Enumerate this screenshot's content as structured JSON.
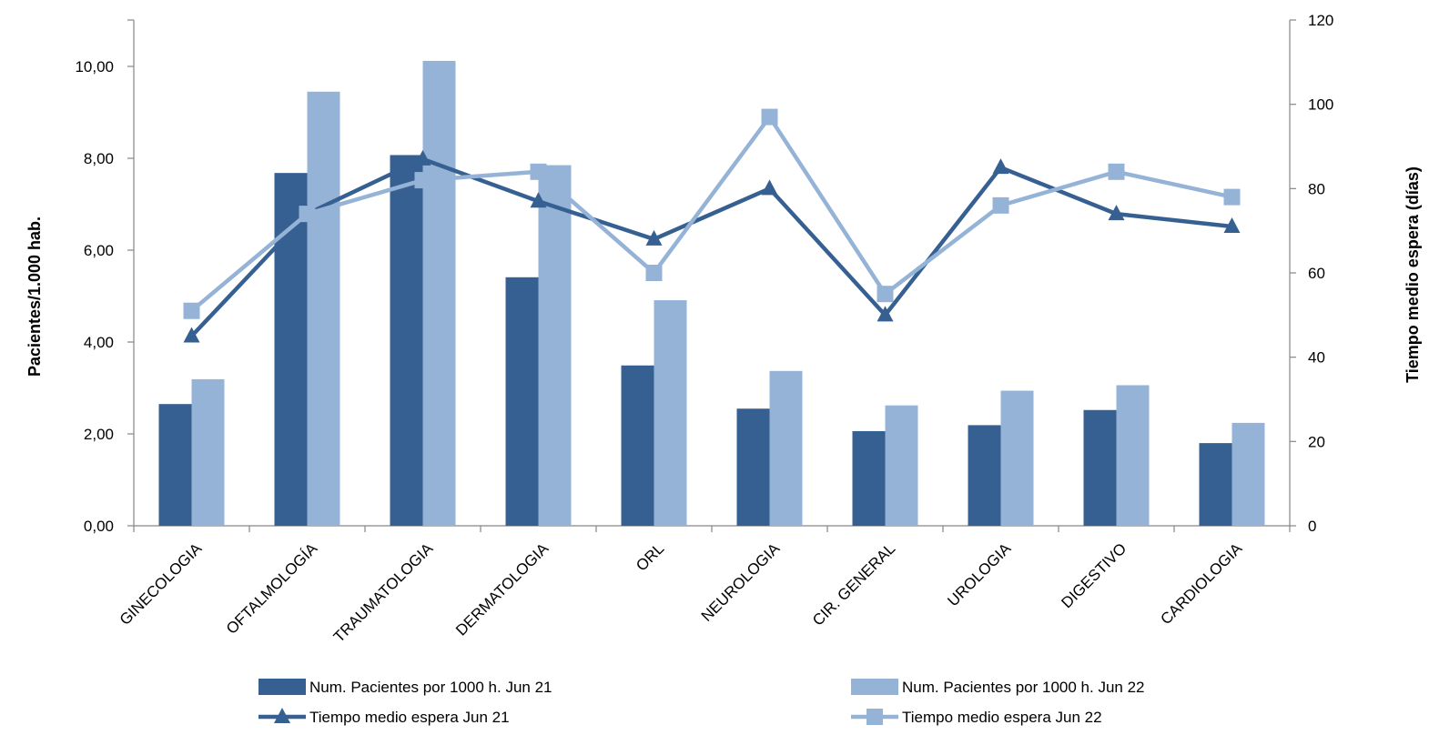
{
  "chart_data": {
    "type": "bar",
    "categories": [
      "GINECOLOGIA",
      "OFTALMOLOGÍA",
      "TRAUMATOLOGIA",
      "DERMATOLOGIA",
      "ORL",
      "NEUROLOGIA",
      "CIR. GENERAL",
      "UROLOGIA",
      "DIGESTIVO",
      "CARDIOLOGIA"
    ],
    "series": [
      {
        "name": "Num. Pacientes por 1000 h.  Jun 21",
        "kind": "bar",
        "axis": "left",
        "color": "#376092",
        "values": [
          2.65,
          7.68,
          8.07,
          5.41,
          3.49,
          2.55,
          2.06,
          2.19,
          2.52,
          1.8
        ]
      },
      {
        "name": "Num. Pacientes por 1000 h. Jun 22",
        "kind": "bar",
        "axis": "left",
        "color": "#95B3D7",
        "values": [
          3.19,
          9.45,
          10.12,
          7.85,
          4.91,
          3.37,
          2.62,
          2.94,
          3.06,
          2.24
        ]
      },
      {
        "name": "Tiempo medio espera Jun 21",
        "kind": "line",
        "marker": "triangle",
        "axis": "right",
        "color": "#376092",
        "values": [
          45,
          74,
          87,
          77,
          68,
          80,
          50,
          85,
          74,
          71
        ]
      },
      {
        "name": "Tiempo medio espera Jun 22",
        "kind": "line",
        "marker": "square",
        "axis": "right",
        "color": "#95B3D7",
        "values": [
          51,
          74,
          82,
          84,
          60,
          97,
          55,
          76,
          84,
          78
        ]
      }
    ],
    "ylabel": "Pacientes/1.000 hab.",
    "y2label": "Tiempo medio espera (días)",
    "ylim": [
      0,
      10
    ],
    "yticks": [
      "0,00",
      "2,00",
      "4,00",
      "6,00",
      "8,00",
      "10,00"
    ],
    "y2lim": [
      0,
      120
    ],
    "y2ticks": [
      "0",
      "20",
      "40",
      "60",
      "80",
      "100",
      "120"
    ],
    "grid": false,
    "legend_position": "bottom"
  }
}
